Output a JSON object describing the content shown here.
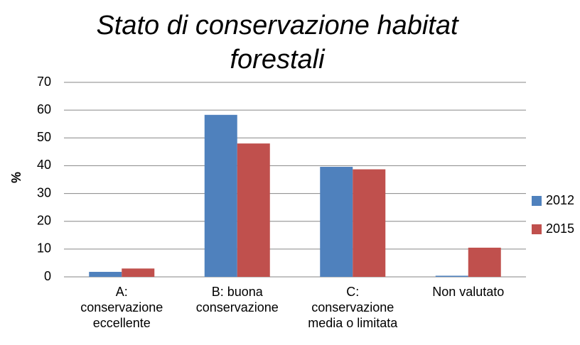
{
  "chart_data": {
    "type": "bar",
    "title": "Stato di conservazione habitat forestali",
    "y_label": "%",
    "categories": [
      [
        "A:",
        "conservazione",
        "eccellente"
      ],
      [
        "B: buona",
        "conservazione"
      ],
      [
        "C:",
        "conservazione",
        "media o limitata"
      ],
      [
        "Non valutato"
      ]
    ],
    "series": [
      {
        "name": "2012",
        "color": "#4f81bd",
        "values": [
          1.8,
          58.3,
          39.6,
          0.4
        ]
      },
      {
        "name": "2015",
        "color": "#c0504d",
        "values": [
          3,
          48,
          38.7,
          10.5
        ]
      }
    ],
    "ylim": [
      0,
      70
    ],
    "yticks": [
      0,
      10,
      20,
      30,
      40,
      50,
      60,
      70
    ],
    "grid": true,
    "legend": "right"
  }
}
